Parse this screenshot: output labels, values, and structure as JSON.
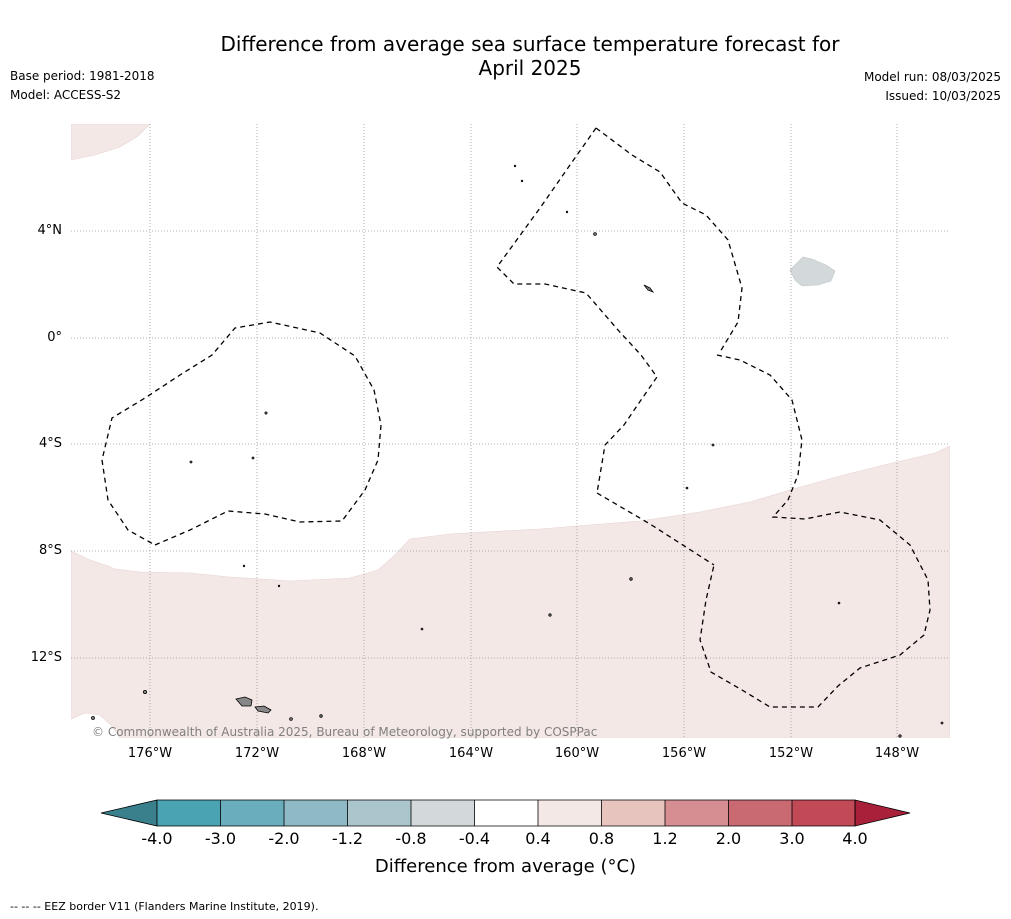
{
  "header": {
    "title_line1": "Difference from average sea surface temperature forecast for",
    "title_line2": "April 2025",
    "base_period": "Base period: 1981-2018",
    "model": "Model: ACCESS-S2",
    "model_run": "Model run: 08/03/2025",
    "issued": "Issued: 10/03/2025"
  },
  "map": {
    "lat_labels": [
      "4°N",
      "0°",
      "4°S",
      "8°S",
      "12°S"
    ],
    "lon_labels": [
      "176°W",
      "172°W",
      "168°W",
      "164°W",
      "160°W",
      "156°W",
      "152°W",
      "148°W"
    ],
    "copyright": "© Commonwealth of Australia 2025, Bureau of Meteorology, supported by COSPPac",
    "colors": {
      "ocean_neutral": "#ffffff",
      "warm_0_4_to_0_8": "#f4e8e6",
      "cool_-0_8_to_-0_4": "#d3d9da",
      "land": "#888888",
      "eez_border": "#000000"
    }
  },
  "colorbar": {
    "ticks": [
      "-4.0",
      "-3.0",
      "-2.0",
      "-1.2",
      "-0.8",
      "-0.4",
      "0.4",
      "0.8",
      "1.2",
      "2.0",
      "3.0",
      "4.0"
    ],
    "colors": [
      "#3a7f8c",
      "#4aa3b3",
      "#6aaebd",
      "#8fb9c4",
      "#aac6cc",
      "#d3d9da",
      "#ffffff",
      "#f4e8e6",
      "#e8c4be",
      "#d78e93",
      "#c96a73",
      "#c14a56",
      "#a8203a"
    ],
    "title": "Difference from average (°C)"
  },
  "footer": {
    "legend_text": "--  --  -- EEZ border V11 (Flanders Marine Institute, 2019)."
  }
}
